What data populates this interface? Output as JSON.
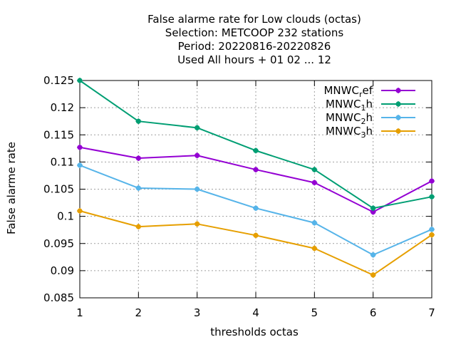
{
  "chart_data": {
    "type": "line",
    "title_lines": [
      "False alarme rate  for Low clouds (octas)",
      "Selection: METCOOP    232 stations",
      "Period: 20220816-20220826",
      "Used  All hours  + 01 02 ... 12"
    ],
    "xlabel": "thresholds octas",
    "ylabel": "False alarme rate",
    "x": [
      1,
      2,
      3,
      4,
      5,
      6,
      7
    ],
    "xlim": [
      1,
      7
    ],
    "ylim": [
      0.085,
      0.125
    ],
    "yticks": [
      0.085,
      0.09,
      0.095,
      0.1,
      0.105,
      0.11,
      0.115,
      0.12,
      0.125
    ],
    "yticklabels": [
      "0.085",
      "0.09",
      "0.095",
      "0.1",
      "0.105",
      "0.11",
      "0.115",
      "0.12",
      "0.125"
    ],
    "xticklabels": [
      "1",
      "2",
      "3",
      "4",
      "5",
      "6",
      "7"
    ],
    "grid": true,
    "legend_position": "top-right",
    "series": [
      {
        "name": "MNWC_ref",
        "label_main": "MNWC",
        "label_sub": "r",
        "label_tail": "ef",
        "color": "#9400d3",
        "values": [
          0.1127,
          0.1107,
          0.1112,
          0.1086,
          0.1062,
          0.1008,
          0.1065
        ]
      },
      {
        "name": "MNWC_1h",
        "label_main": "MNWC",
        "label_sub": "1",
        "label_tail": "h",
        "color": "#009e73",
        "values": [
          0.125,
          0.1175,
          0.1163,
          0.1121,
          0.1086,
          0.1015,
          0.1036
        ]
      },
      {
        "name": "MNWC_2h",
        "label_main": "MNWC",
        "label_sub": "2",
        "label_tail": "h",
        "color": "#56b4e9",
        "values": [
          0.1094,
          0.1052,
          0.105,
          0.1015,
          0.0988,
          0.0929,
          0.0976
        ]
      },
      {
        "name": "MNWC_3h",
        "label_main": "MNWC",
        "label_sub": "3",
        "label_tail": "h",
        "color": "#e69f00",
        "values": [
          0.101,
          0.0981,
          0.0986,
          0.0965,
          0.0941,
          0.0892,
          0.0966
        ]
      }
    ]
  }
}
